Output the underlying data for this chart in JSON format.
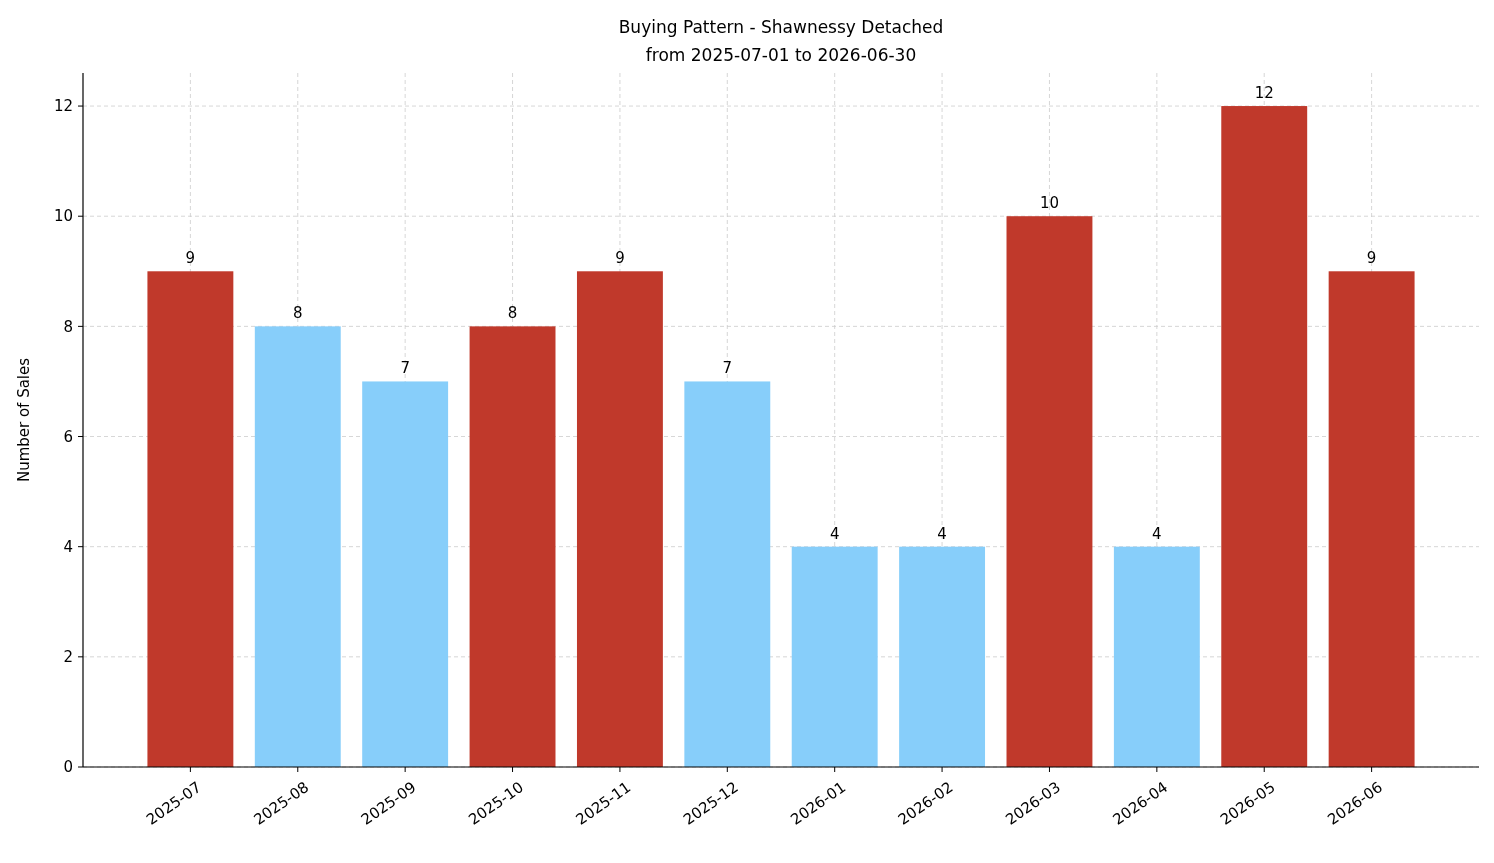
{
  "chart_data": {
    "type": "bar",
    "title": "Buying Pattern - Shawnessy Detached",
    "subtitle": "from 2025-07-01 to 2026-06-30",
    "ylabel": "Number of Sales",
    "categories": [
      "2025-07",
      "2025-08",
      "2025-09",
      "2025-10",
      "2025-11",
      "2025-12",
      "2026-01",
      "2026-02",
      "2026-03",
      "2026-04",
      "2026-05",
      "2026-06"
    ],
    "values": [
      9,
      8,
      7,
      8,
      9,
      7,
      4,
      4,
      10,
      4,
      12,
      9
    ],
    "colors": [
      "#c0392b",
      "#87cefa",
      "#87cefa",
      "#c0392b",
      "#c0392b",
      "#87cefa",
      "#87cefa",
      "#87cefa",
      "#c0392b",
      "#87cefa",
      "#c0392b",
      "#c0392b"
    ],
    "ylim": [
      0,
      12.6
    ],
    "yticks": [
      0,
      2,
      4,
      6,
      8,
      10,
      12
    ],
    "grid": true,
    "data_labels": true
  }
}
